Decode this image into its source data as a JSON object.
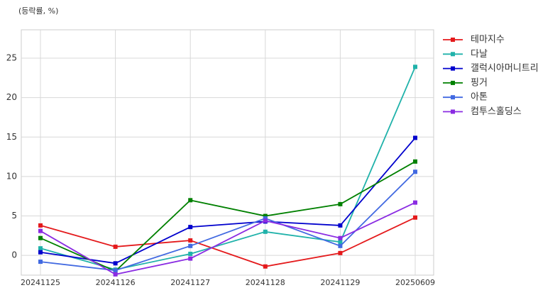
{
  "chart_data": {
    "type": "line",
    "unit_label": "(등락률, %)",
    "categories": [
      "20241125",
      "20241126",
      "20241127",
      "20241128",
      "20241129",
      "20250609"
    ],
    "series": [
      {
        "name": "테마지수",
        "color": "#e41a1c",
        "values": [
          3.8,
          1.1,
          1.9,
          -1.4,
          0.3,
          4.8
        ]
      },
      {
        "name": "다날",
        "color": "#20b2aa",
        "values": [
          0.9,
          -1.8,
          0.2,
          3.0,
          1.7,
          23.9
        ]
      },
      {
        "name": "갤럭시아머니트리",
        "color": "#0000cd",
        "values": [
          0.4,
          -1.0,
          3.6,
          4.3,
          3.8,
          14.9
        ]
      },
      {
        "name": "핑거",
        "color": "#008000",
        "values": [
          2.2,
          -2.0,
          7.0,
          5.0,
          6.5,
          11.9
        ]
      },
      {
        "name": "아톤",
        "color": "#4169e1",
        "values": [
          -0.8,
          -1.9,
          1.2,
          4.7,
          1.2,
          10.6
        ]
      },
      {
        "name": "컴투스홀딩스",
        "color": "#8a2be2",
        "values": [
          3.1,
          -2.4,
          -0.4,
          4.4,
          2.2,
          6.7
        ]
      }
    ],
    "ylim": [
      -2.5,
      28.6
    ],
    "yticks": [
      0,
      5,
      10,
      15,
      20,
      25
    ],
    "grid": true,
    "legend": "outside-upper-right"
  }
}
